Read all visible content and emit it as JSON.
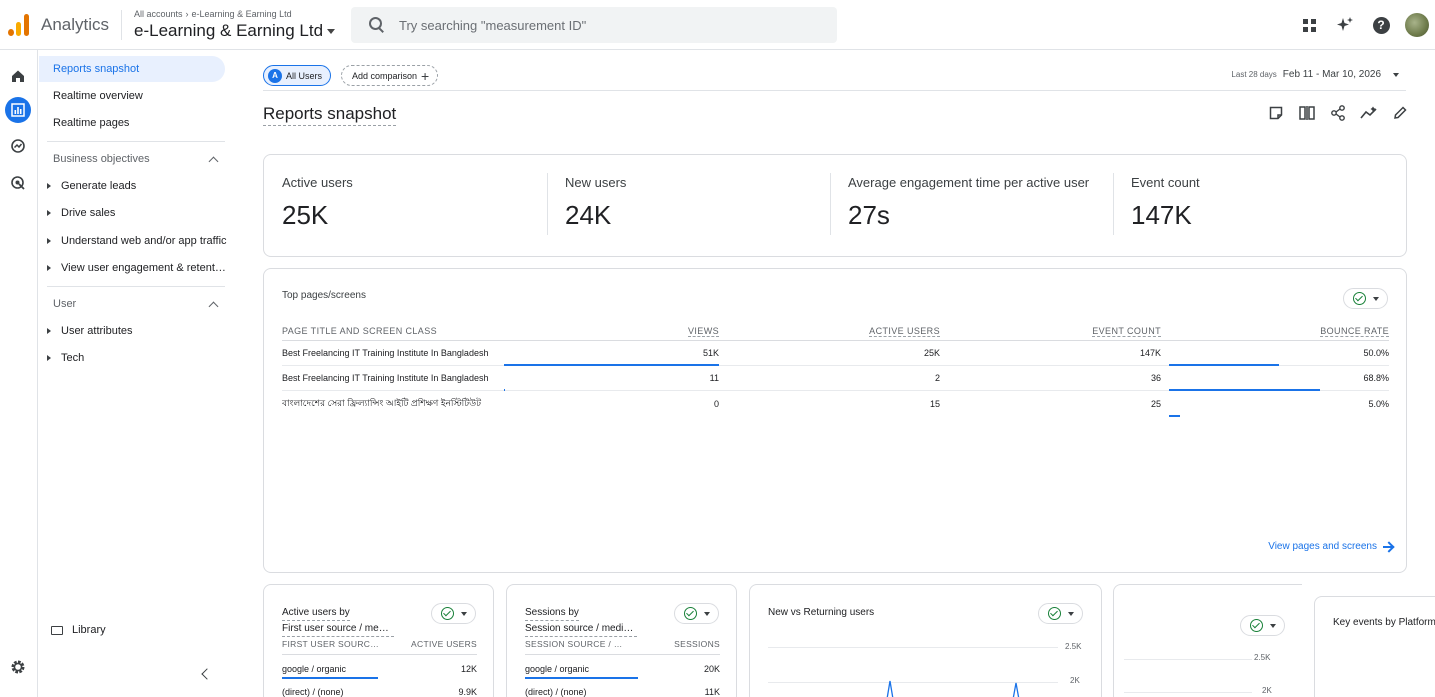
{
  "header": {
    "app_name": "Analytics",
    "breadcrumb_all": "All accounts",
    "breadcrumb_account": "e-Learning & Earning Ltd",
    "account_name": "e-Learning & Earning Ltd",
    "search_placeholder": "Try searching \"measurement ID\""
  },
  "sidebar": {
    "top_items": [
      "Reports snapshot",
      "Realtime overview",
      "Realtime pages"
    ],
    "sections": [
      {
        "title": "Business objectives",
        "items": [
          "Generate leads",
          "Drive sales",
          "Understand web and/or app traffic",
          "View user engagement & retention"
        ]
      },
      {
        "title": "User",
        "items": [
          "User attributes",
          "Tech"
        ]
      }
    ],
    "library": "Library"
  },
  "main": {
    "chip_all_users": "All Users",
    "chip_badge": "A",
    "add_comparison": "Add comparison",
    "date_prefix": "Last 28 days",
    "date_range": "Feb 11 - Mar 10, 2026",
    "page_title": "Reports snapshot",
    "metrics": [
      {
        "label": "Active users",
        "value": "25K"
      },
      {
        "label": "New users",
        "value": "24K"
      },
      {
        "label": "Average engagement time per active user",
        "value": "27s"
      },
      {
        "label": "Event count",
        "value": "147K"
      }
    ],
    "top_pages": {
      "title": "Top pages/screens",
      "columns": [
        "PAGE TITLE AND SCREEN CLASS",
        "VIEWS",
        "ACTIVE USERS",
        "EVENT COUNT",
        "BOUNCE RATE"
      ],
      "rows": [
        {
          "title": "Best Freelancing IT Training Institute In Bangladesh",
          "views": "51K",
          "active": "25K",
          "events": "147K",
          "bounce": "50.0%",
          "views_frac": 1.0,
          "bounce_frac": 0.5
        },
        {
          "title": "Best Freelancing IT Training Institute In Bangladesh",
          "views": "11",
          "active": "2",
          "events": "36",
          "bounce": "68.8%",
          "views_frac": 0.0002,
          "bounce_frac": 0.688
        },
        {
          "title": "বাংলাদেশের সেরা ফ্রিল্যান্সিং আইটি প্রশিক্ষণ ইনস্টিটিউট",
          "views": "0",
          "active": "15",
          "events": "25",
          "bounce": "5.0%",
          "views_frac": 0,
          "bounce_frac": 0.05
        }
      ],
      "link": "View pages and screens"
    },
    "card_users_source": {
      "title_1": "Active users by",
      "title_2": "First user source / medium",
      "col_1": "FIRST USER SOURCE / MEDIUM",
      "col_2": "ACTIVE USERS",
      "rows": [
        {
          "label": "google / organic",
          "value": "12K",
          "frac": 0.49
        },
        {
          "label": "(direct) / (none)",
          "value": "9.9K",
          "frac": 0.4
        }
      ]
    },
    "card_sessions_source": {
      "title_1": "Sessions by",
      "title_2": "Session source / medium",
      "col_1": "SESSION SOURCE / MEDIUM",
      "col_2": "SESSIONS",
      "rows": [
        {
          "label": "google / organic",
          "value": "20K",
          "frac": 0.58
        },
        {
          "label": "(direct) / (none)",
          "value": "11K",
          "frac": 0.32
        }
      ]
    },
    "card_new_returning": {
      "title": "New vs Returning users",
      "ticks": [
        "2.5K",
        "2K"
      ]
    },
    "card_key_events": {
      "title": "Key events by Platform",
      "ticks": [
        "2.5K",
        "2K"
      ]
    }
  },
  "colors": {
    "accent": "#1a73e8",
    "check": "#188038",
    "logo_orange": "#f9ab00"
  }
}
